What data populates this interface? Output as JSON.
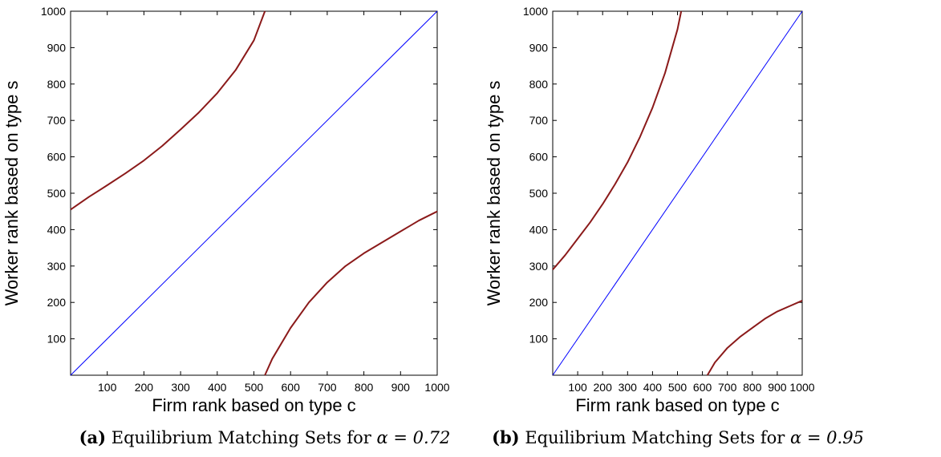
{
  "chart_data": [
    {
      "type": "line",
      "panel": "a",
      "xlabel": "Firm rank based on type c",
      "ylabel": "Worker rank based on type s",
      "xlim": [
        0,
        1000
      ],
      "ylim": [
        0,
        1000
      ],
      "xticks": [
        100,
        200,
        300,
        400,
        500,
        600,
        700,
        800,
        900,
        1000
      ],
      "yticks": [
        100,
        200,
        300,
        400,
        500,
        600,
        700,
        800,
        900,
        1000
      ],
      "grid": false,
      "caption": {
        "label": "(a)",
        "text": "Equilibrium Matching Sets for",
        "math": "α = 0.72"
      },
      "series": [
        {
          "color": "#0000ff",
          "x": [
            0,
            1000
          ],
          "y": [
            0,
            1000
          ]
        },
        {
          "color": "#8b1a1a",
          "x": [
            0,
            50,
            100,
            150,
            200,
            250,
            300,
            350,
            400,
            450,
            500,
            530
          ],
          "y": [
            455,
            490,
            522,
            555,
            590,
            630,
            675,
            722,
            775,
            838,
            920,
            1000
          ]
        },
        {
          "color": "#8b1a1a",
          "x": [
            530,
            550,
            600,
            650,
            700,
            750,
            800,
            850,
            900,
            950,
            1000
          ],
          "y": [
            0,
            45,
            130,
            200,
            255,
            300,
            335,
            365,
            395,
            425,
            450
          ]
        }
      ]
    },
    {
      "type": "line",
      "panel": "b",
      "xlabel": "Firm rank based on type c",
      "ylabel": "Worker rank based on type s",
      "xlim": [
        0,
        1000
      ],
      "ylim": [
        0,
        1000
      ],
      "xticks": [
        100,
        200,
        300,
        400,
        500,
        600,
        700,
        800,
        900,
        1000
      ],
      "yticks": [
        100,
        200,
        300,
        400,
        500,
        600,
        700,
        800,
        900,
        1000
      ],
      "grid": false,
      "caption": {
        "label": "(b)",
        "text": "Equilibrium Matching Sets for",
        "math": "α = 0.95"
      },
      "series": [
        {
          "color": "#0000ff",
          "x": [
            0,
            1000
          ],
          "y": [
            0,
            1000
          ]
        },
        {
          "color": "#8b1a1a",
          "x": [
            0,
            50,
            100,
            150,
            200,
            250,
            300,
            350,
            400,
            450,
            500,
            515
          ],
          "y": [
            290,
            330,
            375,
            420,
            470,
            525,
            585,
            655,
            735,
            830,
            950,
            1000
          ]
        },
        {
          "color": "#8b1a1a",
          "x": [
            620,
            650,
            700,
            750,
            800,
            850,
            900,
            950,
            1000
          ],
          "y": [
            0,
            35,
            75,
            105,
            130,
            155,
            175,
            190,
            205
          ]
        }
      ]
    }
  ]
}
